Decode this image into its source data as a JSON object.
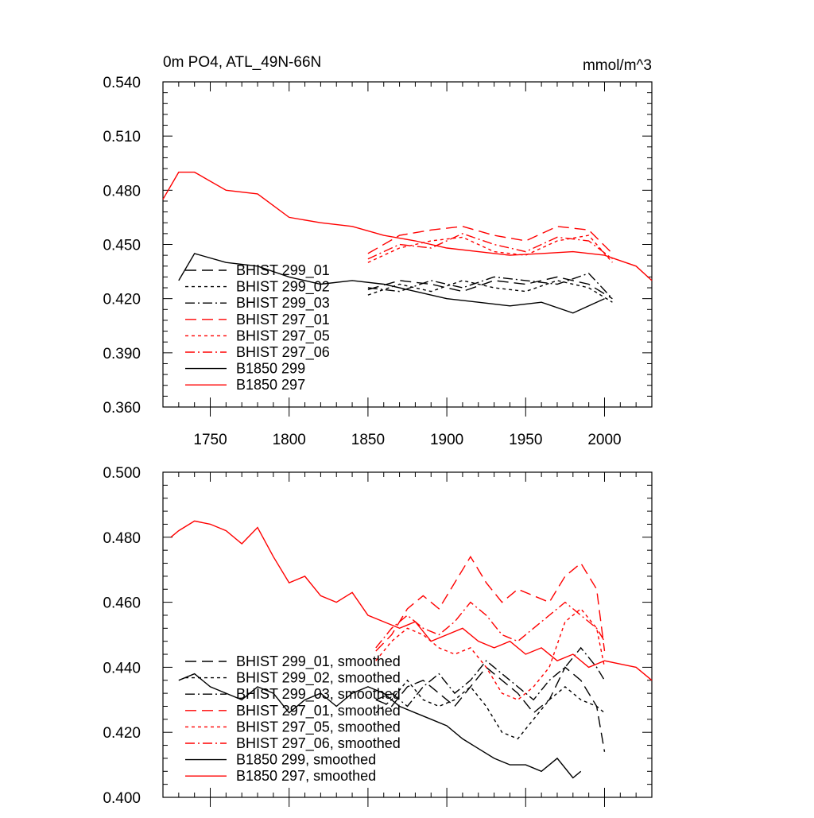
{
  "chart_data": [
    {
      "type": "line",
      "title": "0m PO4, ATL_49N-66N",
      "units": "mmol/m^3",
      "xlim": [
        1720,
        2030
      ],
      "ylim": [
        0.36,
        0.54
      ],
      "xticks": [
        {
          "value": 1750,
          "label": "1750"
        },
        {
          "value": 1800,
          "label": "1800"
        },
        {
          "value": 1850,
          "label": "1850"
        },
        {
          "value": 1900,
          "label": "1900"
        },
        {
          "value": 1950,
          "label": "1950"
        },
        {
          "value": 2000,
          "label": "2000"
        }
      ],
      "yticks": [
        {
          "value": 0.36,
          "label": "0.360"
        },
        {
          "value": 0.39,
          "label": "0.390"
        },
        {
          "value": 0.42,
          "label": "0.420"
        },
        {
          "value": 0.45,
          "label": "0.450"
        },
        {
          "value": 0.48,
          "label": "0.480"
        },
        {
          "value": 0.51,
          "label": "0.510"
        },
        {
          "value": 0.54,
          "label": "0.540"
        }
      ],
      "legend": [
        "BHIST 299_01",
        "BHIST 299_02",
        "BHIST 299_03",
        "BHIST 297_01",
        "BHIST 297_05",
        "BHIST 297_06",
        "B1850 299",
        "B1850 297"
      ],
      "series": [
        {
          "name": "BHIST 299_01",
          "color": "#000000",
          "dash": "long",
          "x": [
            1850,
            1870,
            1890,
            1910,
            1930,
            1950,
            1970,
            1990,
            2005
          ],
          "y": [
            0.425,
            0.43,
            0.428,
            0.424,
            0.43,
            0.428,
            0.432,
            0.428,
            0.42
          ]
        },
        {
          "name": "BHIST 299_02",
          "color": "#000000",
          "dash": "short",
          "x": [
            1850,
            1870,
            1890,
            1910,
            1930,
            1950,
            1970,
            1990,
            2005
          ],
          "y": [
            0.422,
            0.428,
            0.424,
            0.43,
            0.426,
            0.424,
            0.43,
            0.426,
            0.418
          ]
        },
        {
          "name": "BHIST 299_03",
          "color": "#000000",
          "dash": "dashdot",
          "x": [
            1850,
            1870,
            1890,
            1910,
            1930,
            1950,
            1970,
            1990,
            2005
          ],
          "y": [
            0.426,
            0.424,
            0.43,
            0.426,
            0.432,
            0.43,
            0.428,
            0.434,
            0.42
          ]
        },
        {
          "name": "BHIST 297_01",
          "color": "#ff0000",
          "dash": "long",
          "x": [
            1850,
            1870,
            1890,
            1910,
            1930,
            1950,
            1970,
            1990,
            2005
          ],
          "y": [
            0.445,
            0.455,
            0.458,
            0.46,
            0.455,
            0.452,
            0.46,
            0.458,
            0.445
          ]
        },
        {
          "name": "BHIST 297_05",
          "color": "#ff0000",
          "dash": "short",
          "x": [
            1850,
            1870,
            1890,
            1910,
            1930,
            1950,
            1970,
            1990,
            2005
          ],
          "y": [
            0.44,
            0.448,
            0.452,
            0.454,
            0.446,
            0.444,
            0.452,
            0.455,
            0.44
          ]
        },
        {
          "name": "BHIST 297_06",
          "color": "#ff0000",
          "dash": "dashdot",
          "x": [
            1850,
            1870,
            1890,
            1910,
            1930,
            1950,
            1970,
            1990,
            2005
          ],
          "y": [
            0.442,
            0.45,
            0.448,
            0.456,
            0.45,
            0.446,
            0.454,
            0.452,
            0.442
          ]
        },
        {
          "name": "B1850 299",
          "color": "#000000",
          "dash": "solid",
          "x": [
            1730,
            1740,
            1760,
            1780,
            1800,
            1820,
            1840,
            1860,
            1880,
            1900,
            1920,
            1940,
            1960,
            1980,
            2000
          ],
          "y": [
            0.43,
            0.445,
            0.44,
            0.438,
            0.432,
            0.428,
            0.43,
            0.428,
            0.424,
            0.42,
            0.418,
            0.416,
            0.418,
            0.412,
            0.42
          ]
        },
        {
          "name": "B1850 297",
          "color": "#ff0000",
          "dash": "solid",
          "x": [
            1720,
            1730,
            1740,
            1760,
            1780,
            1800,
            1820,
            1840,
            1860,
            1880,
            1900,
            1920,
            1940,
            1960,
            1980,
            2000,
            2020,
            2030
          ],
          "y": [
            0.475,
            0.49,
            0.49,
            0.48,
            0.478,
            0.465,
            0.462,
            0.46,
            0.455,
            0.452,
            0.448,
            0.446,
            0.444,
            0.445,
            0.446,
            0.444,
            0.438,
            0.43
          ]
        }
      ]
    },
    {
      "type": "line",
      "xlim": [
        1720,
        2030
      ],
      "ylim": [
        0.4,
        0.5
      ],
      "xticks": [
        {
          "value": 1750,
          "label": ""
        },
        {
          "value": 1800,
          "label": ""
        },
        {
          "value": 1850,
          "label": ""
        },
        {
          "value": 1900,
          "label": ""
        },
        {
          "value": 1950,
          "label": ""
        },
        {
          "value": 2000,
          "label": ""
        }
      ],
      "yticks": [
        {
          "value": 0.4,
          "label": "0.400"
        },
        {
          "value": 0.42,
          "label": "0.420"
        },
        {
          "value": 0.44,
          "label": "0.440"
        },
        {
          "value": 0.46,
          "label": "0.460"
        },
        {
          "value": 0.48,
          "label": "0.480"
        },
        {
          "value": 0.5,
          "label": "0.500"
        }
      ],
      "legend": [
        "BHIST 299_01, smoothed",
        "BHIST 299_02, smoothed",
        "BHIST 299_03, smoothed",
        "BHIST 297_01, smoothed",
        "BHIST 297_05, smoothed",
        "BHIST 297_06, smoothed",
        "B1850 299, smoothed",
        "B1850 297, smoothed"
      ],
      "series": [
        {
          "name": "BHIST 299_01, smoothed",
          "color": "#000000",
          "dash": "long",
          "x": [
            1855,
            1865,
            1875,
            1885,
            1895,
            1905,
            1915,
            1925,
            1935,
            1945,
            1955,
            1965,
            1975,
            1985,
            1995,
            2000
          ],
          "y": [
            0.43,
            0.428,
            0.434,
            0.436,
            0.432,
            0.428,
            0.434,
            0.44,
            0.436,
            0.432,
            0.426,
            0.43,
            0.44,
            0.436,
            0.428,
            0.414
          ]
        },
        {
          "name": "BHIST 299_02, smoothed",
          "color": "#000000",
          "dash": "short",
          "x": [
            1855,
            1865,
            1875,
            1885,
            1895,
            1905,
            1915,
            1925,
            1935,
            1945,
            1955,
            1965,
            1975,
            1985,
            1995,
            2000
          ],
          "y": [
            0.426,
            0.43,
            0.436,
            0.43,
            0.428,
            0.43,
            0.434,
            0.428,
            0.42,
            0.418,
            0.424,
            0.43,
            0.434,
            0.43,
            0.428,
            0.426
          ]
        },
        {
          "name": "BHIST 299_03, smoothed",
          "color": "#000000",
          "dash": "dashdot",
          "x": [
            1855,
            1865,
            1875,
            1885,
            1895,
            1905,
            1915,
            1925,
            1935,
            1945,
            1955,
            1965,
            1975,
            1985,
            1995,
            2000
          ],
          "y": [
            0.43,
            0.432,
            0.428,
            0.434,
            0.438,
            0.432,
            0.436,
            0.442,
            0.438,
            0.434,
            0.43,
            0.436,
            0.44,
            0.446,
            0.44,
            0.436
          ]
        },
        {
          "name": "BHIST 297_01, smoothed",
          "color": "#ff0000",
          "dash": "long",
          "x": [
            1855,
            1865,
            1875,
            1885,
            1895,
            1905,
            1915,
            1925,
            1935,
            1945,
            1955,
            1965,
            1975,
            1985,
            1995,
            2000
          ],
          "y": [
            0.445,
            0.45,
            0.458,
            0.462,
            0.458,
            0.466,
            0.474,
            0.466,
            0.46,
            0.464,
            0.462,
            0.46,
            0.468,
            0.472,
            0.464,
            0.445
          ]
        },
        {
          "name": "BHIST 297_05, smoothed",
          "color": "#ff0000",
          "dash": "short",
          "x": [
            1855,
            1865,
            1875,
            1885,
            1895,
            1905,
            1915,
            1925,
            1935,
            1945,
            1955,
            1965,
            1975,
            1985,
            1995,
            2000
          ],
          "y": [
            0.442,
            0.448,
            0.452,
            0.45,
            0.446,
            0.444,
            0.446,
            0.44,
            0.432,
            0.43,
            0.434,
            0.44,
            0.454,
            0.458,
            0.452,
            0.44
          ]
        },
        {
          "name": "BHIST 297_06, smoothed",
          "color": "#ff0000",
          "dash": "dashdot",
          "x": [
            1855,
            1865,
            1875,
            1885,
            1895,
            1905,
            1915,
            1925,
            1935,
            1945,
            1955,
            1965,
            1975,
            1985,
            1995,
            2000
          ],
          "y": [
            0.446,
            0.452,
            0.456,
            0.452,
            0.45,
            0.454,
            0.46,
            0.456,
            0.45,
            0.448,
            0.452,
            0.456,
            0.46,
            0.456,
            0.452,
            0.448
          ]
        },
        {
          "name": "B1850 299, smoothed",
          "color": "#000000",
          "dash": "solid",
          "x": [
            1730,
            1740,
            1750,
            1760,
            1770,
            1780,
            1790,
            1800,
            1810,
            1820,
            1830,
            1840,
            1850,
            1860,
            1870,
            1880,
            1890,
            1900,
            1910,
            1920,
            1930,
            1940,
            1950,
            1960,
            1970,
            1980,
            1985
          ],
          "y": [
            0.436,
            0.438,
            0.434,
            0.432,
            0.43,
            0.434,
            0.432,
            0.426,
            0.43,
            0.432,
            0.428,
            0.432,
            0.434,
            0.432,
            0.428,
            0.426,
            0.424,
            0.422,
            0.418,
            0.415,
            0.412,
            0.41,
            0.41,
            0.408,
            0.412,
            0.406,
            0.408
          ]
        },
        {
          "name": "B1850 297, smoothed",
          "color": "#ff0000",
          "dash": "solid",
          "x": [
            1725,
            1730,
            1740,
            1750,
            1760,
            1770,
            1780,
            1790,
            1800,
            1810,
            1820,
            1830,
            1840,
            1850,
            1860,
            1870,
            1880,
            1890,
            1900,
            1910,
            1920,
            1930,
            1940,
            1950,
            1960,
            1970,
            1980,
            1990,
            2000,
            2010,
            2020,
            2030
          ],
          "y": [
            0.48,
            0.482,
            0.485,
            0.484,
            0.482,
            0.478,
            0.483,
            0.474,
            0.466,
            0.468,
            0.462,
            0.46,
            0.463,
            0.456,
            0.454,
            0.452,
            0.454,
            0.448,
            0.45,
            0.452,
            0.448,
            0.446,
            0.448,
            0.444,
            0.446,
            0.442,
            0.444,
            0.44,
            0.442,
            0.441,
            0.44,
            0.436
          ]
        }
      ]
    }
  ]
}
